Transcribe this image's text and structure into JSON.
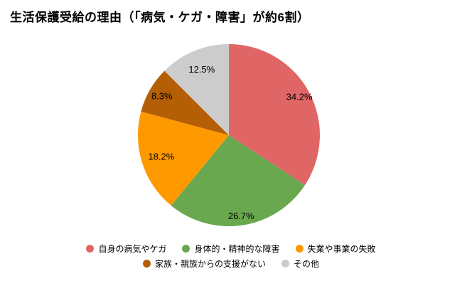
{
  "page": {
    "title": "生活保護受給の理由（「病気・ケガ・障害」が約6割）"
  },
  "chart_data": {
    "type": "pie",
    "title": "生活保護受給の理由（「病気・ケガ・障害」が約6割）",
    "categories": [
      "自身の病気やケガ",
      "身体的・精神的な障害",
      "失業や事業の失敗",
      "家族・親族からの支援がない",
      "その他"
    ],
    "values": [
      34.2,
      26.7,
      18.2,
      8.3,
      12.5
    ],
    "labels": [
      "34.2%",
      "26.7%",
      "18.2%",
      "8.3%",
      "12.5%"
    ],
    "colors": [
      "#e06666",
      "#6aa84f",
      "#ff9900",
      "#b45f06",
      "#cccccc"
    ],
    "start_angle": "top",
    "direction": "clockwise",
    "legend_position": "bottom",
    "label_color": "#000000"
  }
}
